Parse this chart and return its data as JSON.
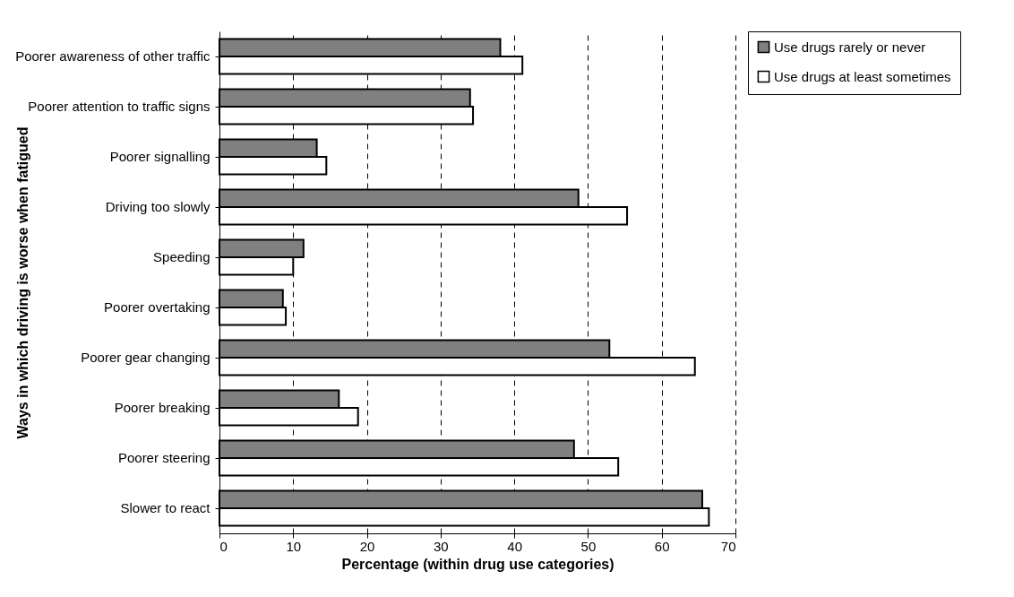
{
  "chart_data": {
    "type": "bar",
    "orientation": "horizontal",
    "xlabel": "Percentage (within drug use categories)",
    "ylabel": "Ways in which driving is worse when fatigued",
    "categories": [
      "Poorer awareness of other traffic",
      "Poorer attention to traffic signs",
      "Poorer signalling",
      "Driving too slowly",
      "Speeding",
      "Poorer overtaking",
      "Poorer gear changing",
      "Poorer breaking",
      "Poorer steering",
      "Slower to react"
    ],
    "series": [
      {
        "name": "Use drugs rarely or never",
        "color": "#808080",
        "values": [
          38.1,
          34.0,
          13.2,
          48.7,
          11.4,
          8.6,
          52.9,
          16.2,
          48.1,
          65.5
        ]
      },
      {
        "name": "Use drugs at least sometimes",
        "color": "#ffffff",
        "values": [
          41.1,
          34.4,
          14.5,
          55.3,
          10.0,
          9.0,
          64.5,
          18.8,
          54.1,
          66.4
        ]
      }
    ],
    "xlim": [
      0,
      70
    ],
    "xticks": [
      0,
      10,
      20,
      30,
      40,
      50,
      60,
      70
    ],
    "grid": "x",
    "legend": "right"
  }
}
